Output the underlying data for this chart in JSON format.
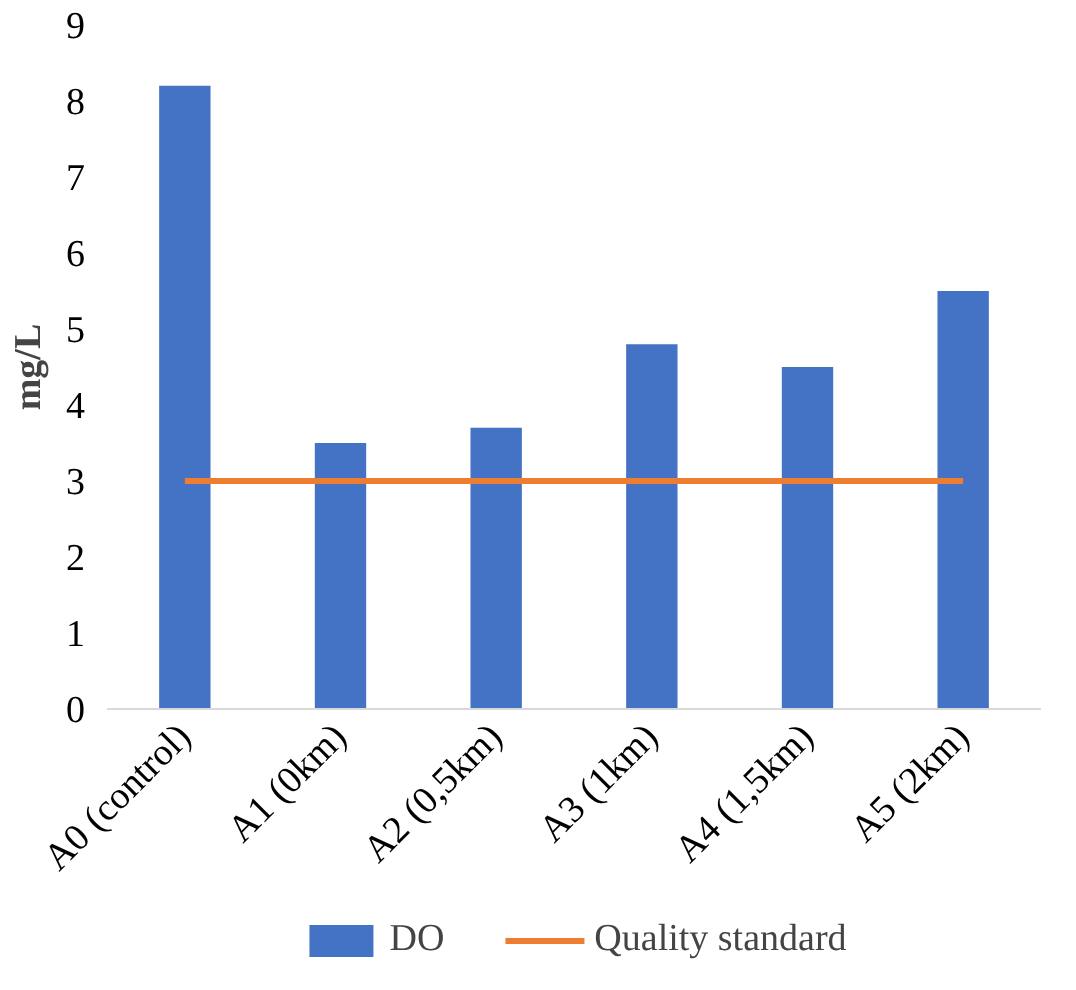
{
  "chart_data": {
    "type": "bar",
    "ylabel": "mg/L",
    "categories": [
      "A0 (control)",
      "A1 (0km)",
      "A2 (0,5km)",
      "A3 (1km)",
      "A4 (1,5km)",
      "A5 (2km)"
    ],
    "series": [
      {
        "name": "DO",
        "color": "#4472c4",
        "values": [
          8.2,
          3.5,
          3.7,
          4.8,
          4.5,
          5.5
        ]
      },
      {
        "name": "Quality standard",
        "type": "line",
        "color": "#ed7d31",
        "values": [
          3,
          3,
          3,
          3,
          3,
          3
        ]
      }
    ],
    "ylim": [
      0,
      9
    ],
    "yticks": [
      0,
      1,
      2,
      3,
      4,
      5,
      6,
      7,
      8,
      9
    ],
    "grid": false,
    "legend": "bottom",
    "marker": "none",
    "line_style": "solid"
  }
}
